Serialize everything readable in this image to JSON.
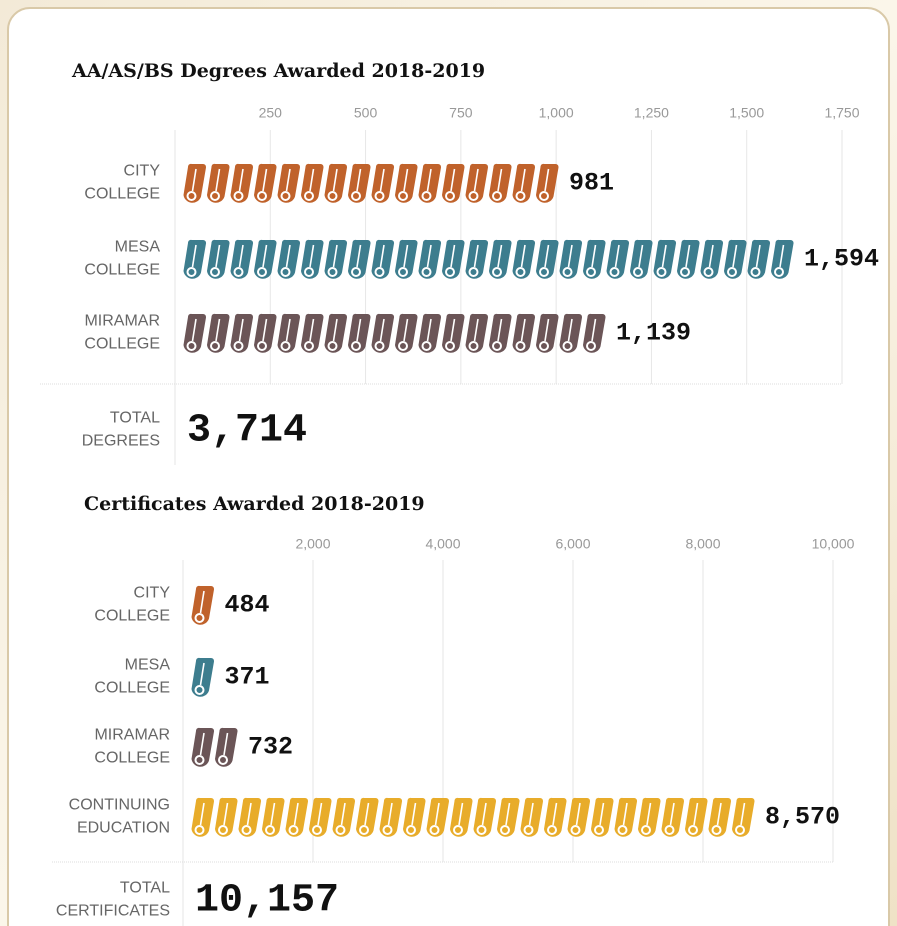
{
  "chart_data": [
    {
      "type": "pictogram",
      "title": "AA/AS/BS Degrees Awarded 2018-2019",
      "categories": [
        "CITY COLLEGE",
        "MESA COLLEGE",
        "MIRAMAR COLLEGE"
      ],
      "values": [
        981,
        1594,
        1139
      ],
      "value_labels": [
        "981",
        "1,594",
        "1,139"
      ],
      "colors": [
        "#c0622b",
        "#3d7d8e",
        "#6b5557"
      ],
      "xlim": [
        0,
        1750
      ],
      "xticks": [
        250,
        500,
        750,
        {
          "value": 1000,
          "label": "1,000"
        },
        {
          "value": 1250,
          "label": "1,250"
        },
        {
          "value": 1500,
          "label": "1,500"
        },
        {
          "value": 1750,
          "label": "1,750"
        }
      ],
      "grid": true,
      "total": {
        "name": "TOTAL DEGREES",
        "value": 3714,
        "value_label": "3,714"
      }
    },
    {
      "type": "pictogram",
      "title": "Certificates Awarded 2018-2019",
      "categories": [
        "CITY COLLEGE",
        "MESA COLLEGE",
        "MIRAMAR COLLEGE",
        "CONTINUING EDUCATION"
      ],
      "values": [
        484,
        371,
        732,
        8570
      ],
      "value_labels": [
        "484",
        "371",
        "732",
        "8,570"
      ],
      "colors": [
        "#c0622b",
        "#3d7d8e",
        "#6b5557",
        "#e8ac2a"
      ],
      "xlim": [
        0,
        10000
      ],
      "xticks": [
        {
          "value": 2000,
          "label": "2,000"
        },
        {
          "value": 4000,
          "label": "4,000"
        },
        {
          "value": 6000,
          "label": "6,000"
        },
        {
          "value": 8000,
          "label": "8,000"
        },
        {
          "value": 10000,
          "label": "10,000"
        }
      ],
      "grid": true,
      "total": {
        "name": "TOTAL CERTIFICATES",
        "value": 10157,
        "value_label": "10,157"
      }
    }
  ]
}
